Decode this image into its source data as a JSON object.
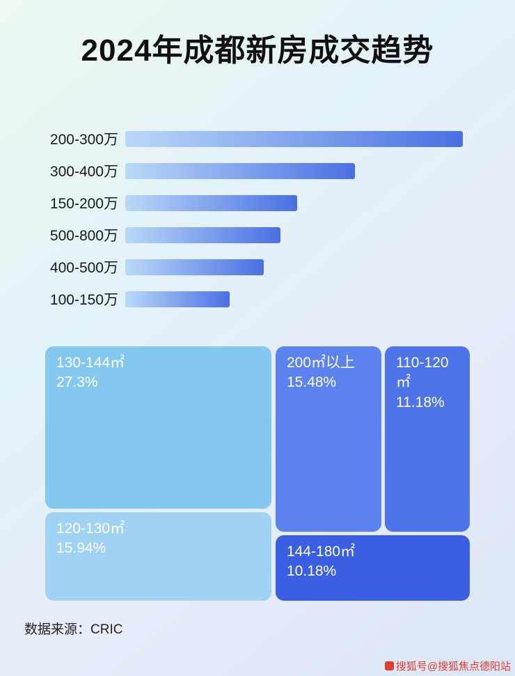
{
  "title": "2024年成都新房成交趋势",
  "chart_data": [
    {
      "type": "bar",
      "orientation": "horizontal",
      "title": "2024年成都新房成交趋势",
      "categories": [
        "200-300万",
        "300-400万",
        "150-200万",
        "500-800万",
        "400-500万",
        "100-150万"
      ],
      "values": [
        100,
        68,
        51,
        46,
        41,
        31
      ],
      "value_scale": "relative (no axis shown, lengths estimated from pixels)",
      "bar_gradient": [
        "#b9d9f7",
        "#4a6fe3"
      ],
      "grid": "off",
      "legend": "none"
    },
    {
      "type": "treemap",
      "blocks": [
        {
          "label": "130-144㎡",
          "pct": "27.3%",
          "value": 27.3,
          "color": "#84c7ef"
        },
        {
          "label": "120-130㎡",
          "pct": "15.94%",
          "value": 15.94,
          "color": "#9fd2f3"
        },
        {
          "label": "200㎡以上",
          "pct": "15.48%",
          "value": 15.48,
          "color": "#5b82ee"
        },
        {
          "label": "110-120㎡",
          "pct": "11.18%",
          "value": 11.18,
          "color": "#4d74e9"
        },
        {
          "label": "144-180㎡",
          "pct": "10.18%",
          "value": 10.18,
          "color": "#3b5fe2"
        }
      ]
    }
  ],
  "footer": {
    "source_label": "数据来源：CRIC"
  },
  "watermark": {
    "text": "搜狐号@搜狐焦点德阳站",
    "color": "#e23c2e"
  }
}
